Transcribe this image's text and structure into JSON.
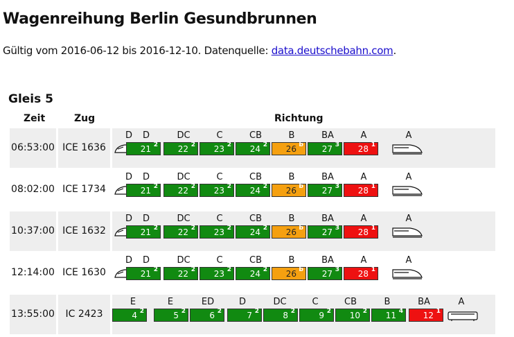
{
  "page": {
    "title": "Wagenreihung Berlin Gesundbrunnen",
    "subtitle_prefix": "Gültig vom 2016-06-12 bis 2016-12-10. Datenquelle: ",
    "source_link": "data.deutschebahn.com",
    "subtitle_suffix": "."
  },
  "platform": {
    "title": "Gleis 5"
  },
  "table": {
    "headers": {
      "time": "Zeit",
      "train": "Zug",
      "direction": "Richtung"
    },
    "rows": [
      {
        "time": "06:53:00",
        "train": "ICE 1636"
      },
      {
        "time": "08:02:00",
        "train": "ICE 1734"
      },
      {
        "time": "10:37:00",
        "train": "ICE 1632"
      },
      {
        "time": "12:14:00",
        "train": "ICE 1630"
      },
      {
        "time": "13:55:00",
        "train": "IC 2423"
      }
    ]
  },
  "ice_formation": {
    "sections": [
      "D",
      "D",
      "DC",
      "C",
      "CB",
      "B",
      "BA",
      "A",
      "A"
    ],
    "cars": [
      {
        "num": "21",
        "cls": "2",
        "color": "#118a11"
      },
      {
        "num": "22",
        "cls": "2",
        "color": "#118a11"
      },
      {
        "num": "23",
        "cls": "2",
        "color": "#118a11"
      },
      {
        "num": "24",
        "cls": "2",
        "color": "#118a11"
      },
      {
        "num": "26",
        "cls": "b",
        "color": "#f5a010"
      },
      {
        "num": "27",
        "cls": "3",
        "color": "#118a11"
      },
      {
        "num": "28",
        "cls": "1",
        "color": "#ee1111"
      }
    ]
  },
  "ic_formation": {
    "sections": [
      "E",
      "E",
      "ED",
      "D",
      "DC",
      "C",
      "CB",
      "B",
      "BA",
      "A"
    ],
    "cars": [
      {
        "num": "4",
        "cls": "2",
        "color": "#118a11"
      },
      {
        "num": "5",
        "cls": "2",
        "color": "#118a11"
      },
      {
        "num": "6",
        "cls": "2",
        "color": "#118a11"
      },
      {
        "num": "7",
        "cls": "2",
        "color": "#118a11"
      },
      {
        "num": "8",
        "cls": "2",
        "color": "#118a11"
      },
      {
        "num": "9",
        "cls": "2",
        "color": "#118a11"
      },
      {
        "num": "10",
        "cls": "2",
        "color": "#118a11"
      },
      {
        "num": "11",
        "cls": "4",
        "color": "#118a11"
      },
      {
        "num": "12",
        "cls": "1",
        "color": "#ee1111"
      }
    ]
  }
}
